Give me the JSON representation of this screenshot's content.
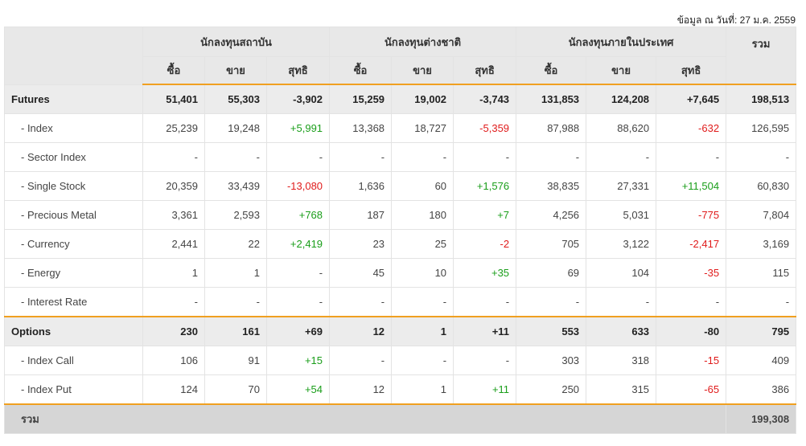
{
  "as_of": "ข้อมูล ณ วันที่: 27 ม.ค. 2559",
  "groups": [
    "นักลงทุนสถาบัน",
    "นักลงทุนต่างชาติ",
    "นักลงทุนภายในประเทศ"
  ],
  "total_header": "รวม",
  "subheaders": [
    "ซื้อ",
    "ขาย",
    "สุทธิ"
  ],
  "rows": [
    {
      "label": "Futures",
      "group": true,
      "values": [
        "51,401",
        "55,303",
        "-3,902",
        "15,259",
        "19,002",
        "-3,743",
        "131,853",
        "124,208",
        "+7,645",
        "198,513"
      ]
    },
    {
      "label": "- Index",
      "group": false,
      "values": [
        "25,239",
        "19,248",
        "+5,991",
        "13,368",
        "18,727",
        "-5,359",
        "87,988",
        "88,620",
        "-632",
        "126,595"
      ]
    },
    {
      "label": "- Sector Index",
      "group": false,
      "values": [
        "-",
        "-",
        "-",
        "-",
        "-",
        "-",
        "-",
        "-",
        "-",
        "-"
      ]
    },
    {
      "label": "- Single Stock",
      "group": false,
      "values": [
        "20,359",
        "33,439",
        "-13,080",
        "1,636",
        "60",
        "+1,576",
        "38,835",
        "27,331",
        "+11,504",
        "60,830"
      ]
    },
    {
      "label": "- Precious Metal",
      "group": false,
      "values": [
        "3,361",
        "2,593",
        "+768",
        "187",
        "180",
        "+7",
        "4,256",
        "5,031",
        "-775",
        "7,804"
      ]
    },
    {
      "label": "- Currency",
      "group": false,
      "values": [
        "2,441",
        "22",
        "+2,419",
        "23",
        "25",
        "-2",
        "705",
        "3,122",
        "-2,417",
        "3,169"
      ]
    },
    {
      "label": "- Energy",
      "group": false,
      "values": [
        "1",
        "1",
        "-",
        "45",
        "10",
        "+35",
        "69",
        "104",
        "-35",
        "115"
      ]
    },
    {
      "label": "- Interest Rate",
      "group": false,
      "values": [
        "-",
        "-",
        "-",
        "-",
        "-",
        "-",
        "-",
        "-",
        "-",
        "-"
      ]
    },
    {
      "label": "Options",
      "group": true,
      "values": [
        "230",
        "161",
        "+69",
        "12",
        "1",
        "+11",
        "553",
        "633",
        "-80",
        "795"
      ]
    },
    {
      "label": "- Index Call",
      "group": false,
      "values": [
        "106",
        "91",
        "+15",
        "-",
        "-",
        "-",
        "303",
        "318",
        "-15",
        "409"
      ]
    },
    {
      "label": "- Index Put",
      "group": false,
      "values": [
        "124",
        "70",
        "+54",
        "12",
        "1",
        "+11",
        "250",
        "315",
        "-65",
        "386"
      ]
    }
  ],
  "grand_total": {
    "label": "รวม",
    "value": "199,308"
  }
}
